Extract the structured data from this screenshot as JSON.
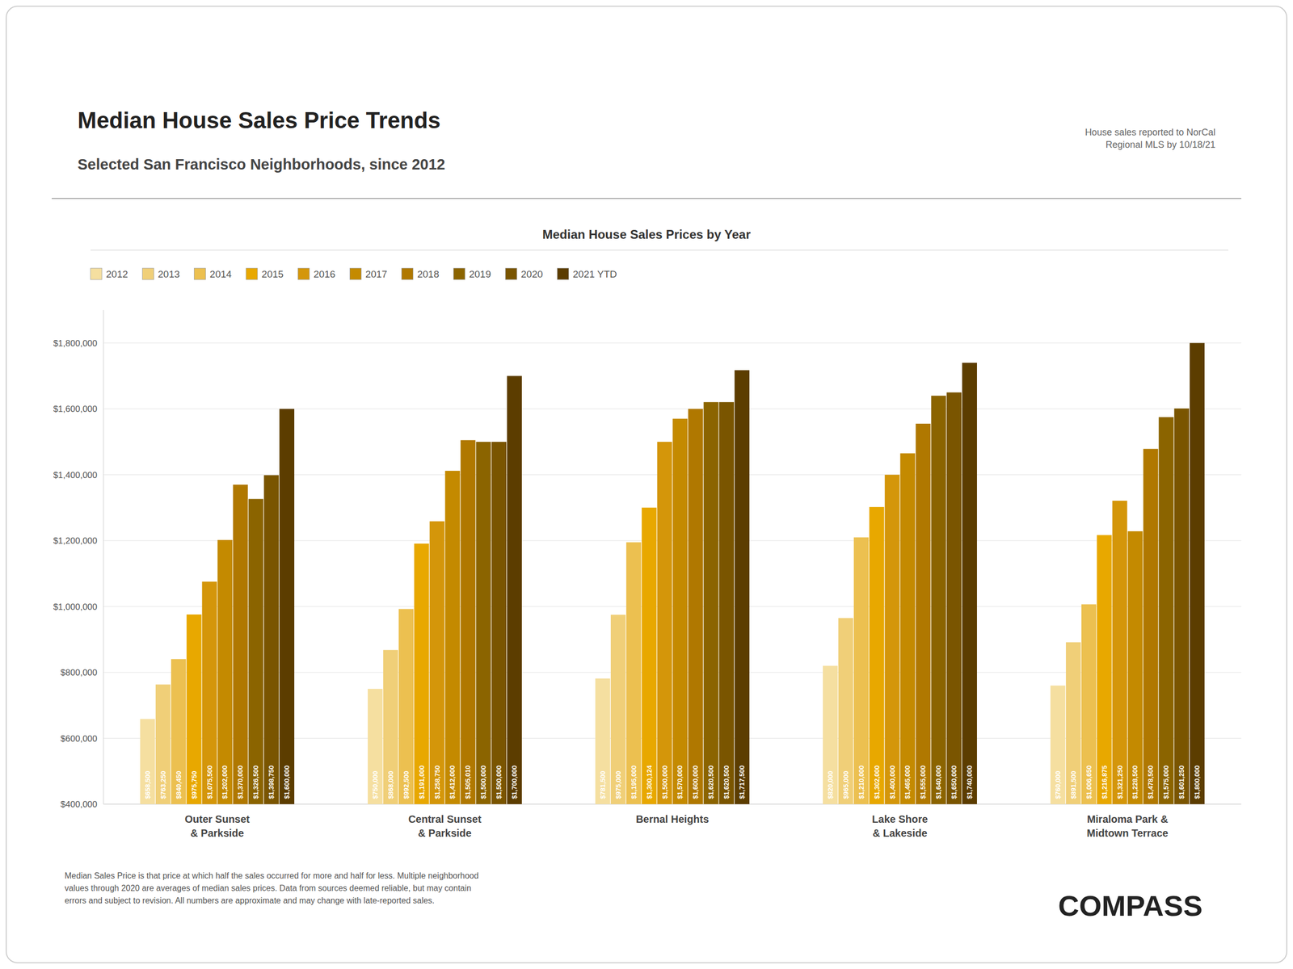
{
  "chart_data": {
    "type": "bar",
    "title": "Median House Sales Price Trends",
    "subtitle": "Selected San Francisco Neighborhoods, since 2012",
    "annotations": [
      "Median House Sales Prices by Year",
      "House sales reported to NorCal\nRegional MLS by 10/18/21",
      "Median Sales Price is that price at which half the sales occurred for more and half for less. Multiple neighborhood\nvalues through 2020 are averages of median sales prices. Data from sources deemed reliable, but may contain\nerrors and subject to revision.  All numbers are approximate and may change with late-reported sales.",
      "COMPASS"
    ],
    "categories": [
      "Outer Sunset\n& Parkside",
      "Central Sunset\n& Parkside",
      "Bernal Heights",
      "Lake Shore\n& Lakeside",
      "Miraloma Park &\nMidtown Terrace"
    ],
    "series": [
      {
        "name": "2012",
        "color": "#F5DFA0",
        "values": [
          658500,
          750000,
          781500,
          820000,
          760000
        ],
        "value_labels": [
          "$658,500",
          "$750,000",
          "$781,500",
          "$820,000",
          "$760,000"
        ]
      },
      {
        "name": "2013",
        "color": "#F0CF78",
        "values": [
          763250,
          868000,
          975000,
          965000,
          891500
        ],
        "value_labels": [
          "$763,250",
          "$868,000",
          "$975,000",
          "$965,000",
          "$891,500"
        ]
      },
      {
        "name": "2014",
        "color": "#ECC050",
        "values": [
          840450,
          992500,
          1195000,
          1210000,
          1006650
        ],
        "value_labels": [
          "$840,450",
          "$992,500",
          "$1,195,000",
          "$1,210,000",
          "$1,006,650"
        ]
      },
      {
        "name": "2015",
        "color": "#E8A800",
        "values": [
          975750,
          1191000,
          1300124,
          1302000,
          1216875
        ],
        "value_labels": [
          "$975,750",
          "$1,191,000",
          "$1,300,124",
          "$1,302,000",
          "$1,216,875"
        ]
      },
      {
        "name": "2016",
        "color": "#D4960A",
        "values": [
          1075500,
          1258750,
          1500000,
          1400000,
          1321250
        ],
        "value_labels": [
          "$1,075,500",
          "$1,258,750",
          "$1,500,000",
          "$1,400,000",
          "$1,321,250"
        ]
      },
      {
        "name": "2017",
        "color": "#C48A00",
        "values": [
          1202000,
          1412000,
          1570000,
          1465000,
          1228500
        ],
        "value_labels": [
          "$1,202,000",
          "$1,412,000",
          "$1,570,000",
          "$1,465,000",
          "$1,228,500"
        ]
      },
      {
        "name": "2018",
        "color": "#B07800",
        "values": [
          1370000,
          1505010,
          1600000,
          1555000,
          1478500
        ],
        "value_labels": [
          "$1,370,000",
          "$1,505,010",
          "$1,600,000",
          "$1,555,000",
          "$1,478,500"
        ]
      },
      {
        "name": "2019",
        "color": "#8B6400",
        "values": [
          1326500,
          1500000,
          1620500,
          1640000,
          1575000
        ],
        "value_labels": [
          "$1,326,500",
          "$1,500,000",
          "$1,620,500",
          "$1,640,000",
          "$1,575,000"
        ]
      },
      {
        "name": "2020",
        "color": "#7A5500",
        "values": [
          1398750,
          1500000,
          1620500,
          1650000,
          1601250
        ],
        "value_labels": [
          "$1,398,750",
          "$1,500,000",
          "$1,620,500",
          "$1,650,000",
          "$1,601,250"
        ]
      },
      {
        "name": "2021 YTD",
        "color": "#5C3D00",
        "values": [
          1600000,
          1700000,
          1717500,
          1740000,
          1800000
        ],
        "value_labels": [
          "$1,600,000",
          "$1,700,000",
          "$1,717,500",
          "$1,740,000",
          "$1,800,000"
        ]
      }
    ],
    "ylim": [
      400000,
      1900000
    ],
    "yticks": [
      {
        "value": 400000,
        "label": "$400,000"
      },
      {
        "value": 600000,
        "label": "$600,000"
      },
      {
        "value": 800000,
        "label": "$800,000"
      },
      {
        "value": 1000000,
        "label": "$1,000,000"
      },
      {
        "value": 1200000,
        "label": "$1,200,000"
      },
      {
        "value": 1400000,
        "label": "$1,400,000"
      },
      {
        "value": 1600000,
        "label": "$1,600,000"
      },
      {
        "value": 1800000,
        "label": "$1,800,000"
      }
    ],
    "grid": true,
    "legend": "top",
    "data_labels": true
  }
}
